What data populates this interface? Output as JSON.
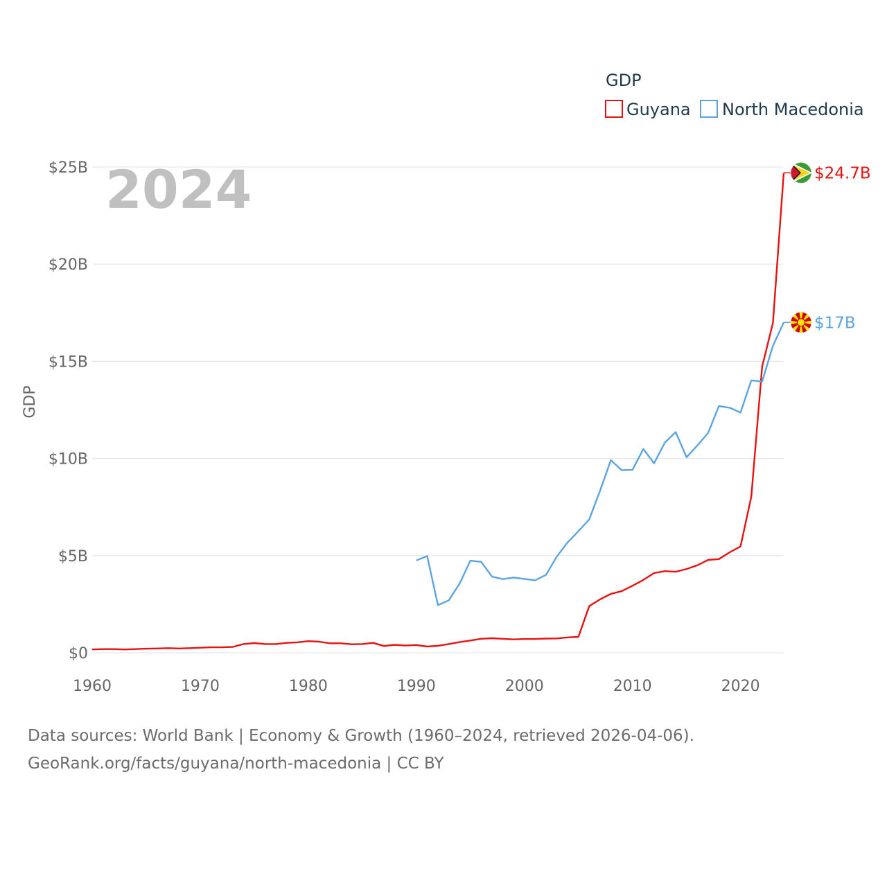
{
  "chart_data": {
    "type": "line",
    "title": "",
    "overlay_year": "2024",
    "legend_title": "GDP",
    "ylabel": "GDP",
    "xlabel": "",
    "xlim": [
      1960,
      2024
    ],
    "ylim": [
      0,
      25
    ],
    "x_ticks": [
      1960,
      1970,
      1980,
      1990,
      2000,
      2010,
      2020
    ],
    "y_ticks": [
      {
        "value": 0,
        "label": "$0"
      },
      {
        "value": 5,
        "label": "$5B"
      },
      {
        "value": 10,
        "label": "$10B"
      },
      {
        "value": 15,
        "label": "$15B"
      },
      {
        "value": 20,
        "label": "$20B"
      },
      {
        "value": 25,
        "label": "$25B"
      }
    ],
    "series": [
      {
        "name": "Guyana",
        "color": "#e8110f",
        "end_label": "$24.7B",
        "flag_icon": "guyana-flag-icon",
        "x": [
          1960,
          1961,
          1962,
          1963,
          1964,
          1965,
          1966,
          1967,
          1968,
          1969,
          1970,
          1971,
          1972,
          1973,
          1974,
          1975,
          1976,
          1977,
          1978,
          1979,
          1980,
          1981,
          1982,
          1983,
          1984,
          1985,
          1986,
          1987,
          1988,
          1989,
          1990,
          1991,
          1992,
          1993,
          1994,
          1995,
          1996,
          1997,
          1998,
          1999,
          2000,
          2001,
          2002,
          2003,
          2004,
          2005,
          2006,
          2007,
          2008,
          2009,
          2010,
          2011,
          2012,
          2013,
          2014,
          2015,
          2016,
          2017,
          2018,
          2019,
          2020,
          2021,
          2022,
          2023,
          2024
        ],
        "values": [
          0.17,
          0.19,
          0.19,
          0.17,
          0.19,
          0.21,
          0.22,
          0.24,
          0.22,
          0.24,
          0.26,
          0.28,
          0.28,
          0.3,
          0.45,
          0.5,
          0.45,
          0.45,
          0.51,
          0.54,
          0.6,
          0.57,
          0.49,
          0.49,
          0.44,
          0.45,
          0.51,
          0.35,
          0.41,
          0.37,
          0.4,
          0.32,
          0.36,
          0.45,
          0.55,
          0.63,
          0.72,
          0.75,
          0.72,
          0.69,
          0.71,
          0.71,
          0.73,
          0.74,
          0.79,
          0.82,
          2.4,
          2.75,
          3.03,
          3.17,
          3.45,
          3.75,
          4.1,
          4.2,
          4.17,
          4.31,
          4.5,
          4.78,
          4.82,
          5.17,
          5.47,
          8.04,
          14.72,
          16.98,
          24.7
        ]
      },
      {
        "name": "North Macedonia",
        "color": "#5ba4e2",
        "end_label": "$17B",
        "flag_icon": "north-macedonia-flag-icon",
        "x": [
          1990,
          1991,
          1992,
          1993,
          1994,
          1995,
          1996,
          1997,
          1998,
          1999,
          2000,
          2001,
          2002,
          2003,
          2004,
          2005,
          2006,
          2007,
          2008,
          2009,
          2010,
          2011,
          2012,
          2013,
          2014,
          2015,
          2016,
          2017,
          2018,
          2019,
          2020,
          2021,
          2022,
          2023,
          2024
        ],
        "values": [
          4.75,
          4.98,
          2.45,
          2.7,
          3.56,
          4.74,
          4.68,
          3.92,
          3.79,
          3.87,
          3.8,
          3.73,
          4.01,
          4.95,
          5.68,
          6.26,
          6.86,
          8.34,
          9.91,
          9.4,
          9.41,
          10.49,
          9.75,
          10.82,
          11.36,
          10.06,
          10.67,
          11.31,
          12.7,
          12.61,
          12.36,
          14.02,
          13.96,
          15.8,
          17.0
        ]
      }
    ]
  },
  "footer": {
    "line1": "Data sources: World Bank | Economy & Growth (1960–2024, retrieved 2026-04-06).",
    "line2": "GeoRank.org/facts/guyana/north-macedonia | CC BY"
  }
}
